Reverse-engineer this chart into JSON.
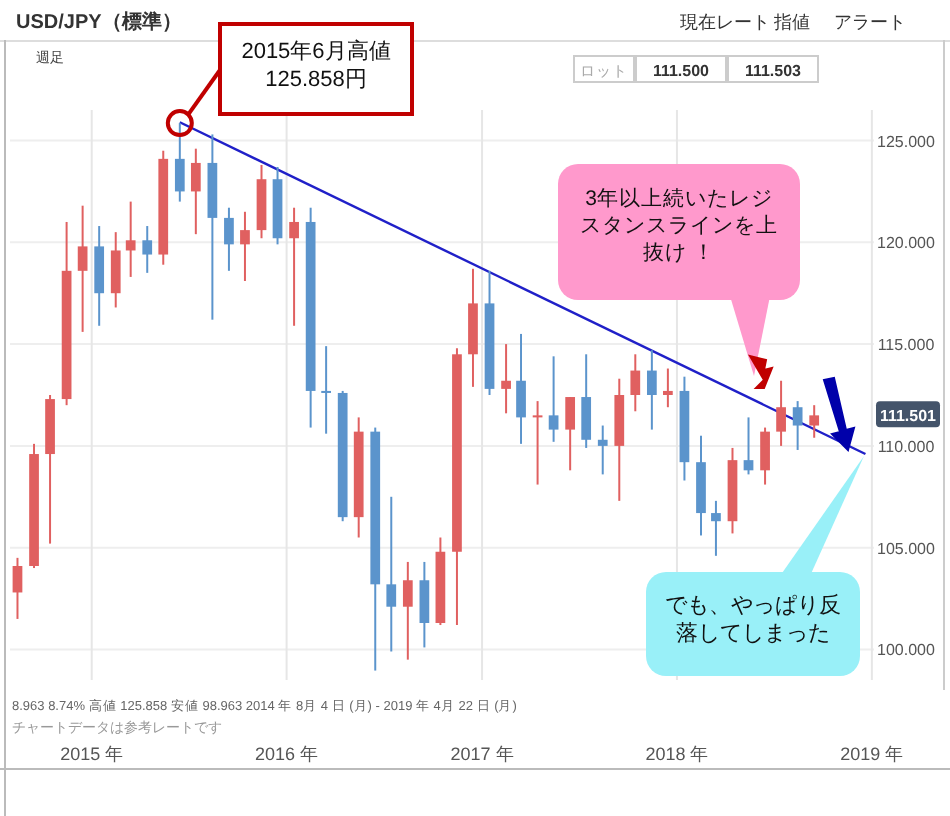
{
  "chart_data": {
    "type": "candlestick",
    "title": "USD/JPY（標準）",
    "x": [
      "2014-08-15",
      "2014-09-15",
      "2014-10-15",
      "2014-11-15",
      "2014-12-15",
      "2015-01-15",
      "2015-02-15",
      "2015-03-15",
      "2015-04-15",
      "2015-05-15",
      "2015-06-15",
      "2015-07-15",
      "2015-08-15",
      "2015-09-15",
      "2015-10-15",
      "2015-11-15",
      "2015-12-15",
      "2016-01-15",
      "2016-02-15",
      "2016-03-15",
      "2016-04-15",
      "2016-05-15",
      "2016-06-15",
      "2016-07-15",
      "2016-08-15",
      "2016-09-15",
      "2016-10-15",
      "2016-11-15",
      "2016-12-15",
      "2017-01-15",
      "2017-02-15",
      "2017-03-15",
      "2017-04-15",
      "2017-05-15",
      "2017-06-15",
      "2017-07-15",
      "2017-08-15",
      "2017-09-15",
      "2017-10-15",
      "2017-11-15",
      "2017-12-15",
      "2018-01-15",
      "2018-02-15",
      "2018-03-15",
      "2018-04-15",
      "2018-05-15",
      "2018-06-15",
      "2018-07-15",
      "2018-08-15",
      "2018-09-15"
    ],
    "ohlc": [
      [
        102.8,
        104.5,
        101.5,
        104.1
      ],
      [
        104.1,
        110.1,
        104.0,
        109.6
      ],
      [
        109.6,
        112.5,
        105.2,
        112.3
      ],
      [
        112.3,
        121.0,
        112.0,
        118.6
      ],
      [
        118.6,
        121.8,
        115.6,
        119.8
      ],
      [
        119.8,
        120.8,
        115.9,
        117.5
      ],
      [
        117.5,
        120.5,
        116.8,
        119.6
      ],
      [
        119.6,
        122.0,
        118.3,
        120.1
      ],
      [
        120.1,
        120.8,
        118.5,
        119.4
      ],
      [
        119.4,
        124.5,
        118.9,
        124.1
      ],
      [
        124.1,
        125.858,
        122.0,
        122.5
      ],
      [
        122.5,
        124.6,
        120.4,
        123.9
      ],
      [
        123.9,
        125.3,
        116.2,
        121.2
      ],
      [
        121.2,
        121.7,
        118.6,
        119.9
      ],
      [
        119.9,
        121.5,
        118.1,
        120.6
      ],
      [
        120.6,
        123.8,
        120.2,
        123.1
      ],
      [
        123.1,
        123.7,
        119.9,
        120.2
      ],
      [
        120.2,
        121.7,
        115.9,
        121.0
      ],
      [
        121.0,
        121.7,
        110.9,
        112.7
      ],
      [
        112.7,
        114.9,
        110.6,
        112.6
      ],
      [
        112.6,
        112.7,
        106.3,
        106.5
      ],
      [
        106.5,
        111.4,
        105.5,
        110.7
      ],
      [
        110.7,
        110.9,
        98.963,
        103.2
      ],
      [
        103.2,
        107.5,
        99.9,
        102.1
      ],
      [
        102.1,
        104.3,
        99.5,
        103.4
      ],
      [
        103.4,
        104.3,
        100.1,
        101.3
      ],
      [
        101.3,
        105.5,
        101.2,
        104.8
      ],
      [
        104.8,
        114.8,
        101.2,
        114.5
      ],
      [
        114.5,
        118.7,
        112.9,
        117.0
      ],
      [
        117.0,
        118.6,
        112.5,
        112.8
      ],
      [
        112.8,
        115.0,
        111.6,
        113.2
      ],
      [
        113.2,
        115.5,
        110.1,
        111.4
      ],
      [
        111.4,
        112.2,
        108.1,
        111.5
      ],
      [
        111.5,
        114.4,
        110.2,
        110.8
      ],
      [
        110.8,
        112.4,
        108.8,
        112.4
      ],
      [
        112.4,
        114.5,
        109.9,
        110.3
      ],
      [
        110.3,
        111.0,
        108.6,
        110.0
      ],
      [
        110.0,
        113.3,
        107.3,
        112.5
      ],
      [
        112.5,
        114.5,
        111.7,
        113.7
      ],
      [
        113.7,
        114.7,
        110.8,
        112.5
      ],
      [
        112.5,
        113.8,
        111.9,
        112.7
      ],
      [
        112.7,
        113.4,
        108.3,
        109.2
      ],
      [
        109.2,
        110.5,
        105.6,
        106.7
      ],
      [
        106.7,
        107.3,
        104.6,
        106.3
      ],
      [
        106.3,
        109.9,
        105.7,
        109.3
      ],
      [
        109.3,
        111.4,
        108.6,
        108.8
      ],
      [
        108.8,
        110.9,
        108.1,
        110.7
      ],
      [
        110.7,
        113.2,
        110.0,
        111.9
      ],
      [
        111.9,
        112.2,
        109.8,
        111.0
      ],
      [
        111.0,
        112.0,
        110.4,
        111.5
      ]
    ],
    "series": [
      {
        "type": "line",
        "x": [
          "2015-06-15",
          "2018-12-20"
        ],
        "values": [
          125.9,
          109.6
        ],
        "color": "#2020c8"
      }
    ],
    "colors": [
      "#e06060",
      "#e06060",
      "#e06060",
      "#e06060",
      "#e06060",
      "#5b94cc",
      "#e06060",
      "#e06060",
      "#5b94cc",
      "#e06060",
      "#5b94cc",
      "#e06060",
      "#5b94cc",
      "#5b94cc",
      "#e06060",
      "#e06060",
      "#5b94cc",
      "#e06060",
      "#5b94cc",
      "#5b94cc",
      "#5b94cc",
      "#e06060",
      "#5b94cc",
      "#5b94cc",
      "#e06060",
      "#5b94cc",
      "#e06060",
      "#e06060",
      "#e06060",
      "#5b94cc",
      "#e06060",
      "#5b94cc",
      "#e06060",
      "#5b94cc",
      "#e06060",
      "#5b94cc",
      "#5b94cc",
      "#e06060",
      "#e06060",
      "#5b94cc",
      "#e06060",
      "#5b94cc",
      "#5b94cc",
      "#5b94cc",
      "#e06060",
      "#5b94cc",
      "#e06060",
      "#e06060",
      "#5b94cc",
      "#e06060"
    ],
    "xlim": [
      "2014-08-01",
      "2019-01-05"
    ],
    "xticks": [
      {
        "value": "2015-01-01",
        "label": "2015 年"
      },
      {
        "value": "2016-01-01",
        "label": "2016 年"
      },
      {
        "value": "2017-01-01",
        "label": "2017 年"
      },
      {
        "value": "2018-01-01",
        "label": "2018 年"
      },
      {
        "value": "2019-01-01",
        "label": "2019 年"
      }
    ],
    "ylim": [
      98.5,
      126.5
    ],
    "yticks": [
      {
        "value": 100,
        "label": "100.000"
      },
      {
        "value": 105,
        "label": "105.000"
      },
      {
        "value": 110,
        "label": "110.000"
      },
      {
        "value": 115,
        "label": "115.000"
      },
      {
        "value": 120,
        "label": "120.000"
      },
      {
        "value": 125,
        "label": "125.000"
      }
    ],
    "grid": true,
    "annotations": [
      {
        "text": "2015年6月高値\n125.858円",
        "x": "2015-06-15",
        "y": 125.858
      },
      "3年以上続いたレジスタンスラインを上抜け ！",
      "でも、やっぱり反落してしまった",
      "8.963  8.74%   高値 125.858   安値 98.963   2014 年 8月 4 日 (月) - 2019 年 4月 22 日 (月)",
      "チャートデータは参考レートです",
      "週足",
      "現在レート",
      "指値",
      "アラート",
      "ロット",
      "111.500",
      "111.503",
      "111.501"
    ]
  }
}
